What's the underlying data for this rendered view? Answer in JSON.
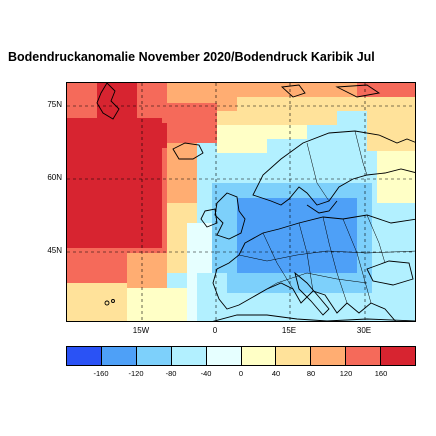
{
  "title": "Bodendruckanomalie November 2020/Bodendruck Karibik Jul",
  "lat_labels": [
    "75N",
    "60N",
    "45N"
  ],
  "lon_labels": [
    "15W",
    "0",
    "15E",
    "30E"
  ],
  "colorbar": {
    "colors": [
      "#2a52f5",
      "#4ea0f7",
      "#7dd0fb",
      "#b2f0ff",
      "#e6ffff",
      "#ffffc6",
      "#ffe29a",
      "#ffad72",
      "#f56a5a",
      "#d72430"
    ],
    "labels": [
      "-160",
      "-120",
      "-80",
      "-40",
      "0",
      "40",
      "80",
      "120",
      "160"
    ]
  },
  "icons": {
    "coastline": "coastline-outline",
    "borders": "country-border-lines"
  }
}
